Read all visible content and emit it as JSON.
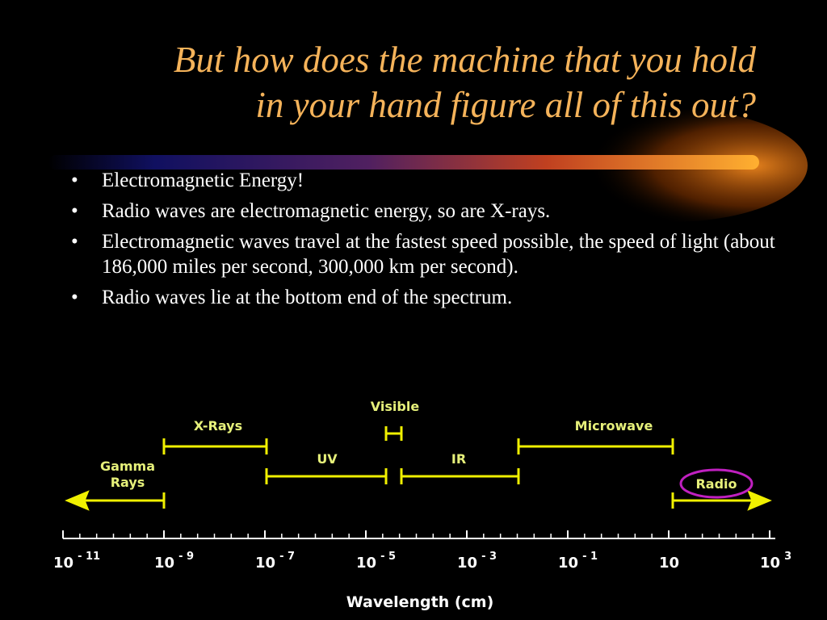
{
  "title": {
    "lines": [
      "But how does the machine that you hold",
      "in your hand figure all of this out?"
    ]
  },
  "bullets": [
    "Electromagnetic Energy!",
    "Radio waves are electromagnetic energy, so are X-rays.",
    "Electromagnetic waves  travel at the fastest speed possible, the speed of light (about 186,000 miles per second, 300,000 km per second).",
    "Radio waves lie at the bottom end of the spectrum."
  ],
  "diagram": {
    "bands": [
      {
        "label": [
          "Gamma",
          "Rays"
        ]
      },
      {
        "label": [
          "X-Rays"
        ]
      },
      {
        "label": [
          "UV"
        ]
      },
      {
        "label": [
          "Visible"
        ]
      },
      {
        "label": [
          "IR"
        ]
      },
      {
        "label": [
          "Microwave"
        ]
      },
      {
        "label": [
          "Radio"
        ]
      }
    ],
    "ticks": [
      {
        "base": "10",
        "exp": "- 11"
      },
      {
        "base": "10",
        "exp": "- 9"
      },
      {
        "base": "10",
        "exp": "- 7"
      },
      {
        "base": "10",
        "exp": "- 5"
      },
      {
        "base": "10",
        "exp": "- 3"
      },
      {
        "base": "10",
        "exp": "- 1"
      },
      {
        "base": "10"
      },
      {
        "base": "10",
        "exp": "3"
      }
    ],
    "axis_label": "Wavelength (cm)"
  }
}
